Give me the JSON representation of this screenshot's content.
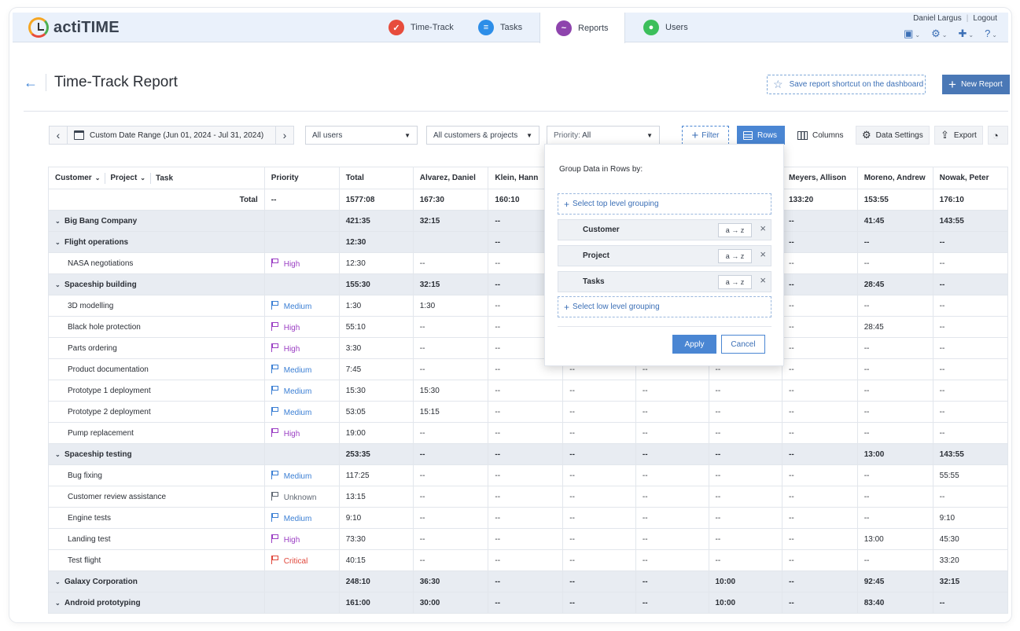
{
  "app": {
    "name": "actiTIME"
  },
  "nav": {
    "tabs": [
      {
        "label": "Time-Track",
        "icon": "time-track-icon",
        "color": "#e74c3c"
      },
      {
        "label": "Tasks",
        "icon": "tasks-icon",
        "color": "#2d8ee8"
      },
      {
        "label": "Reports",
        "icon": "reports-icon",
        "color": "#8e44ad"
      },
      {
        "label": "Users",
        "icon": "users-icon",
        "color": "#3cbf5b"
      }
    ],
    "active": "Reports"
  },
  "user": {
    "name": "Daniel Largus",
    "logout": "Logout"
  },
  "page": {
    "title": "Time-Track Report",
    "shortcut": "Save report shortcut on the dashboard",
    "new_report": "New Report"
  },
  "toolbar": {
    "date_range": "Custom Date Range (Jun 01, 2024 - Jul 31, 2024)",
    "users": "All users",
    "customers": "All customers & projects",
    "priority_label": "Priority:",
    "priority_value": "All",
    "filter": "Filter",
    "rows": "Rows",
    "columns": "Columns",
    "data_settings": "Data Settings",
    "export": "Export"
  },
  "table": {
    "headers": {
      "customer": "Customer",
      "project": "Project",
      "task": "Task",
      "priority": "Priority",
      "total": "Total"
    },
    "people": [
      "Alvarez, Daniel",
      "Klein, Hann",
      "",
      "",
      "",
      "Meyers, Allison",
      "Moreno, Andrew",
      "Nowak, Peter"
    ],
    "total_label": "Total",
    "total_row": {
      "priority": "--",
      "total": "1577:08",
      "cols": [
        "167:30",
        "160:10",
        "",
        "",
        "",
        "133:20",
        "153:55",
        "176:10"
      ]
    },
    "rows": [
      {
        "kind": "group",
        "name": "Big Bang Company",
        "total": "421:35",
        "cols": [
          "32:15",
          "--",
          "",
          "",
          "",
          "--",
          "41:45",
          "143:55"
        ]
      },
      {
        "kind": "group",
        "name": "Flight operations",
        "total": "12:30",
        "cols": [
          "",
          "--",
          "",
          "",
          "",
          "--",
          "--",
          "--"
        ]
      },
      {
        "kind": "task",
        "name": "NASA negotiations",
        "priority": "High",
        "pclass": "p-high",
        "total": "12:30",
        "cols": [
          "--",
          "--",
          "",
          "",
          "",
          "--",
          "--",
          "--"
        ]
      },
      {
        "kind": "group",
        "name": "Spaceship building",
        "total": "155:30",
        "cols": [
          "32:15",
          "--",
          "",
          "",
          "",
          "--",
          "28:45",
          "--"
        ]
      },
      {
        "kind": "task",
        "name": "3D modelling",
        "priority": "Medium",
        "pclass": "p-medium",
        "total": "1:30",
        "cols": [
          "1:30",
          "--",
          "",
          "",
          "",
          "--",
          "--",
          "--"
        ]
      },
      {
        "kind": "task",
        "name": "Black hole protection",
        "priority": "High",
        "pclass": "p-high",
        "total": "55:10",
        "cols": [
          "--",
          "--",
          "",
          "",
          "",
          "--",
          "28:45",
          "--"
        ]
      },
      {
        "kind": "task",
        "name": "Parts ordering",
        "priority": "High",
        "pclass": "p-high",
        "total": "3:30",
        "cols": [
          "--",
          "--",
          "",
          "",
          "",
          "--",
          "--",
          "--"
        ]
      },
      {
        "kind": "task",
        "name": "Product documentation",
        "priority": "Medium",
        "pclass": "p-medium",
        "total": "7:45",
        "cols": [
          "--",
          "--",
          "--",
          "--",
          "--",
          "--",
          "--",
          "--"
        ]
      },
      {
        "kind": "task",
        "name": "Prototype 1 deployment",
        "priority": "Medium",
        "pclass": "p-medium",
        "total": "15:30",
        "cols": [
          "15:30",
          "--",
          "--",
          "--",
          "--",
          "--",
          "--",
          "--"
        ]
      },
      {
        "kind": "task",
        "name": "Prototype 2 deployment",
        "priority": "Medium",
        "pclass": "p-medium",
        "total": "53:05",
        "cols": [
          "15:15",
          "--",
          "--",
          "--",
          "--",
          "--",
          "--",
          "--"
        ]
      },
      {
        "kind": "task",
        "name": "Pump replacement",
        "priority": "High",
        "pclass": "p-high",
        "total": "19:00",
        "cols": [
          "--",
          "--",
          "--",
          "--",
          "--",
          "--",
          "--",
          "--"
        ]
      },
      {
        "kind": "group",
        "name": "Spaceship testing",
        "total": "253:35",
        "cols": [
          "--",
          "--",
          "--",
          "--",
          "--",
          "--",
          "13:00",
          "143:55"
        ]
      },
      {
        "kind": "task",
        "name": "Bug fixing",
        "priority": "Medium",
        "pclass": "p-medium",
        "total": "117:25",
        "cols": [
          "--",
          "--",
          "--",
          "--",
          "--",
          "--",
          "--",
          "55:55"
        ]
      },
      {
        "kind": "task",
        "name": "Customer review assistance",
        "priority": "Unknown",
        "pclass": "p-unknown",
        "total": "13:15",
        "cols": [
          "--",
          "--",
          "--",
          "--",
          "--",
          "--",
          "--",
          "--"
        ]
      },
      {
        "kind": "task",
        "name": "Engine tests",
        "priority": "Medium",
        "pclass": "p-medium",
        "total": "9:10",
        "cols": [
          "--",
          "--",
          "--",
          "--",
          "--",
          "--",
          "--",
          "9:10"
        ]
      },
      {
        "kind": "task",
        "name": "Landing test",
        "priority": "High",
        "pclass": "p-high",
        "total": "73:30",
        "cols": [
          "--",
          "--",
          "--",
          "--",
          "--",
          "--",
          "13:00",
          "45:30"
        ]
      },
      {
        "kind": "task",
        "name": "Test flight",
        "priority": "Critical",
        "pclass": "p-critical",
        "total": "40:15",
        "cols": [
          "--",
          "--",
          "--",
          "--",
          "--",
          "--",
          "--",
          "33:20"
        ]
      },
      {
        "kind": "group",
        "name": "Galaxy Corporation",
        "total": "248:10",
        "cols": [
          "36:30",
          "--",
          "--",
          "--",
          "10:00",
          "--",
          "92:45",
          "32:15"
        ]
      },
      {
        "kind": "group",
        "name": "Android prototyping",
        "total": "161:00",
        "cols": [
          "30:00",
          "--",
          "--",
          "--",
          "10:00",
          "--",
          "83:40",
          "--"
        ]
      }
    ]
  },
  "popup": {
    "title": "Group Data in Rows by:",
    "top_level": "Select top level grouping",
    "low_level": "Select low level grouping",
    "groups": [
      {
        "label": "Customer",
        "sort": "a → z"
      },
      {
        "label": "Project",
        "sort": "a → z"
      },
      {
        "label": "Tasks",
        "sort": "a → z"
      }
    ],
    "apply": "Apply",
    "cancel": "Cancel"
  }
}
